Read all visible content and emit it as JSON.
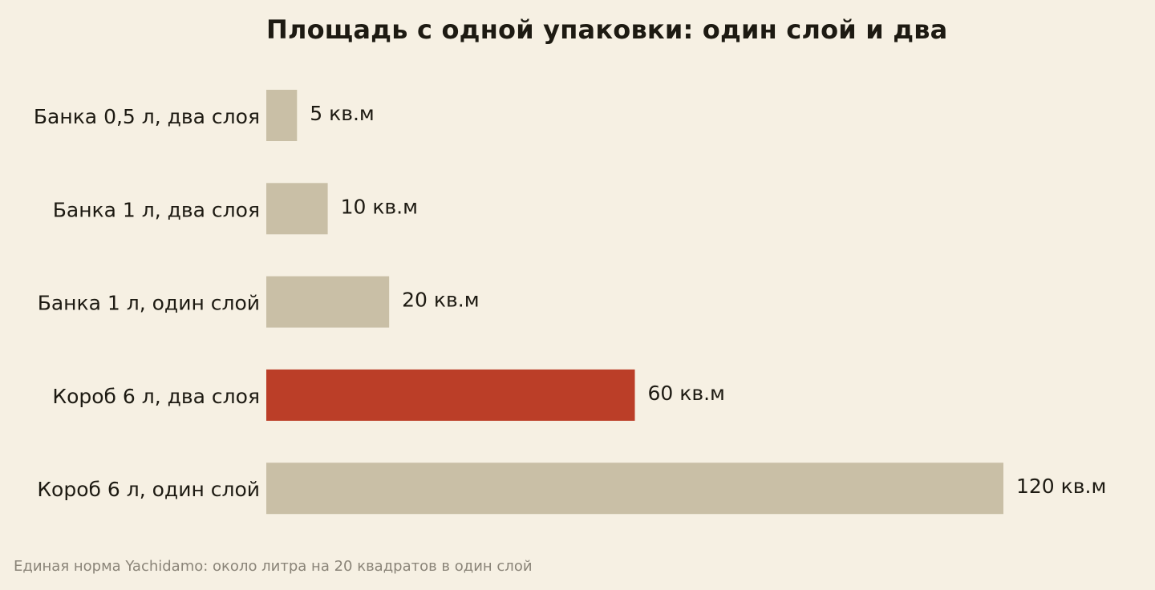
{
  "chart_data": {
    "type": "bar",
    "orientation": "horizontal",
    "title": "Площадь с одной упаковки: один слой и два",
    "categories": [
      "Банка 0,5 л, два слоя",
      "Банка 1 л, два слоя",
      "Банка 1 л, один слой",
      "Короб 6 л, два слоя",
      "Короб 6 л, один слой"
    ],
    "values": [
      5,
      10,
      20,
      60,
      120
    ],
    "value_labels": [
      "5 кв.м",
      "10 кв.м",
      "20 кв.м",
      "60 кв.м",
      "120 кв.м"
    ],
    "unit": "кв.м",
    "xlim": [
      0,
      120
    ],
    "xlabel": "",
    "ylabel": "",
    "grid": false,
    "colors": {
      "default": "#c9bfa6",
      "highlight": "#bb3e28",
      "highlight_index": 3,
      "background": "#f6f0e3"
    },
    "footnote": "Единая норма Yachidamo: около литра на 20 квадратов в один слой"
  }
}
